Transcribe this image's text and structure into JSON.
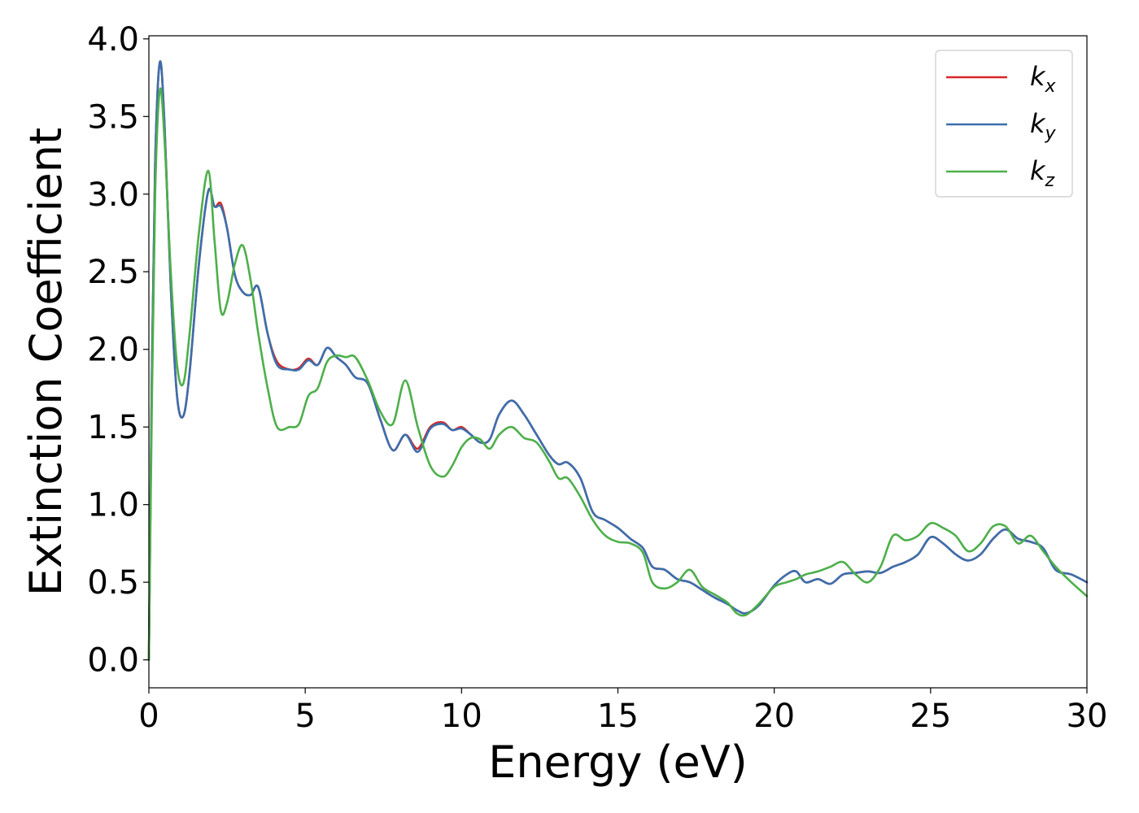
{
  "chart_data": {
    "type": "line",
    "xlabel": "Energy (eV)",
    "ylabel": "Extinction Coefficient",
    "xlim": [
      0,
      30
    ],
    "ylim": [
      -0.18,
      4.02
    ],
    "xticks": [
      0,
      5,
      10,
      15,
      20,
      25,
      30
    ],
    "xtick_labels": [
      "0",
      "5",
      "10",
      "15",
      "20",
      "25",
      "30"
    ],
    "yticks": [
      0.0,
      0.5,
      1.0,
      1.5,
      2.0,
      2.5,
      3.0,
      3.5,
      4.0
    ],
    "ytick_labels": [
      "0.0",
      "0.5",
      "1.0",
      "1.5",
      "2.0",
      "2.5",
      "3.0",
      "3.5",
      "4.0"
    ],
    "grid": false,
    "legend_position": "top-right",
    "series": [
      {
        "name": "x",
        "legend_main": "k",
        "legend_sub": "x",
        "color": "#d62728",
        "x": [
          0,
          0.1,
          0.2,
          0.35,
          0.5,
          0.7,
          0.9,
          1.1,
          1.3,
          1.6,
          1.9,
          2.1,
          2.3,
          2.5,
          2.75,
          3.0,
          3.25,
          3.5,
          3.8,
          4.1,
          4.5,
          4.8,
          5.1,
          5.4,
          5.7,
          6.0,
          6.3,
          6.6,
          7.0,
          7.4,
          7.8,
          8.2,
          8.6,
          9.0,
          9.4,
          9.7,
          10.0,
          10.3,
          10.6,
          10.9,
          11.2,
          11.6,
          12.0,
          12.4,
          12.8,
          13.1,
          13.4,
          13.8,
          14.2,
          14.6,
          15.0,
          15.4,
          15.8,
          16.1,
          16.5,
          16.9,
          17.3,
          17.7,
          18.1,
          18.5,
          18.8,
          19.1,
          19.5,
          20.0,
          20.4,
          20.7,
          21.0,
          21.4,
          21.8,
          22.2,
          22.6,
          23.0,
          23.4,
          23.8,
          24.2,
          24.6,
          25.0,
          25.4,
          25.8,
          26.2,
          26.6,
          27.0,
          27.4,
          27.8,
          28.2,
          28.6,
          29.0,
          29.5,
          30.0
        ],
        "values": [
          0.0,
          1.9,
          3.2,
          3.85,
          3.45,
          2.4,
          1.7,
          1.57,
          1.85,
          2.55,
          3.02,
          2.92,
          2.94,
          2.78,
          2.48,
          2.37,
          2.35,
          2.4,
          2.1,
          1.92,
          1.87,
          1.88,
          1.94,
          1.9,
          2.01,
          1.95,
          1.9,
          1.82,
          1.78,
          1.55,
          1.35,
          1.45,
          1.36,
          1.5,
          1.53,
          1.48,
          1.5,
          1.45,
          1.4,
          1.42,
          1.58,
          1.67,
          1.58,
          1.45,
          1.32,
          1.26,
          1.27,
          1.17,
          0.95,
          0.9,
          0.85,
          0.78,
          0.72,
          0.6,
          0.58,
          0.52,
          0.5,
          0.45,
          0.4,
          0.36,
          0.32,
          0.3,
          0.35,
          0.48,
          0.55,
          0.57,
          0.5,
          0.52,
          0.49,
          0.55,
          0.56,
          0.57,
          0.56,
          0.6,
          0.63,
          0.68,
          0.79,
          0.75,
          0.68,
          0.64,
          0.68,
          0.78,
          0.84,
          0.78,
          0.76,
          0.72,
          0.58,
          0.55,
          0.5
        ]
      },
      {
        "name": "y",
        "legend_main": "k",
        "legend_sub": "y",
        "color": "#3a6fad",
        "x": [
          0,
          0.1,
          0.2,
          0.35,
          0.5,
          0.7,
          0.9,
          1.1,
          1.3,
          1.6,
          1.9,
          2.1,
          2.3,
          2.5,
          2.75,
          3.0,
          3.25,
          3.5,
          3.8,
          4.1,
          4.5,
          4.8,
          5.1,
          5.4,
          5.7,
          6.0,
          6.3,
          6.6,
          7.0,
          7.4,
          7.8,
          8.2,
          8.6,
          9.0,
          9.4,
          9.7,
          10.0,
          10.3,
          10.6,
          10.9,
          11.2,
          11.6,
          12.0,
          12.4,
          12.8,
          13.1,
          13.4,
          13.8,
          14.2,
          14.6,
          15.0,
          15.4,
          15.8,
          16.1,
          16.5,
          16.9,
          17.3,
          17.7,
          18.1,
          18.5,
          18.8,
          19.1,
          19.5,
          20.0,
          20.4,
          20.7,
          21.0,
          21.4,
          21.8,
          22.2,
          22.6,
          23.0,
          23.4,
          23.8,
          24.2,
          24.6,
          25.0,
          25.4,
          25.8,
          26.2,
          26.6,
          27.0,
          27.4,
          27.8,
          28.2,
          28.6,
          29.0,
          29.5,
          30.0
        ],
        "values": [
          0.0,
          1.9,
          3.2,
          3.85,
          3.45,
          2.4,
          1.7,
          1.57,
          1.85,
          2.55,
          3.02,
          2.92,
          2.92,
          2.78,
          2.48,
          2.37,
          2.35,
          2.4,
          2.1,
          1.9,
          1.87,
          1.87,
          1.93,
          1.9,
          2.01,
          1.95,
          1.9,
          1.82,
          1.78,
          1.55,
          1.35,
          1.45,
          1.34,
          1.49,
          1.52,
          1.48,
          1.49,
          1.45,
          1.4,
          1.42,
          1.58,
          1.67,
          1.58,
          1.45,
          1.32,
          1.26,
          1.27,
          1.17,
          0.95,
          0.9,
          0.85,
          0.78,
          0.72,
          0.6,
          0.58,
          0.52,
          0.5,
          0.45,
          0.4,
          0.36,
          0.32,
          0.3,
          0.35,
          0.48,
          0.55,
          0.57,
          0.5,
          0.52,
          0.49,
          0.55,
          0.56,
          0.57,
          0.56,
          0.6,
          0.63,
          0.68,
          0.79,
          0.75,
          0.68,
          0.64,
          0.68,
          0.78,
          0.84,
          0.78,
          0.76,
          0.72,
          0.58,
          0.55,
          0.5
        ]
      },
      {
        "name": "z",
        "legend_main": "k",
        "legend_sub": "z",
        "color": "#4daf4a",
        "x": [
          0,
          0.1,
          0.2,
          0.35,
          0.5,
          0.7,
          0.9,
          1.1,
          1.3,
          1.6,
          1.9,
          2.1,
          2.3,
          2.5,
          2.75,
          3.0,
          3.25,
          3.5,
          3.8,
          4.1,
          4.5,
          4.8,
          5.1,
          5.4,
          5.7,
          6.0,
          6.3,
          6.6,
          7.0,
          7.4,
          7.8,
          8.2,
          8.6,
          9.0,
          9.4,
          9.7,
          10.0,
          10.3,
          10.6,
          10.9,
          11.2,
          11.6,
          12.0,
          12.4,
          12.8,
          13.1,
          13.4,
          13.8,
          14.2,
          14.6,
          15.0,
          15.4,
          15.8,
          16.1,
          16.5,
          16.9,
          17.3,
          17.7,
          18.1,
          18.5,
          18.8,
          19.1,
          19.5,
          20.0,
          20.4,
          20.7,
          21.0,
          21.4,
          21.8,
          22.2,
          22.6,
          23.0,
          23.4,
          23.8,
          24.2,
          24.6,
          25.0,
          25.4,
          25.8,
          26.2,
          26.6,
          27.0,
          27.4,
          27.8,
          28.2,
          28.6,
          29.0,
          29.5,
          30.0
        ],
        "values": [
          0.0,
          1.7,
          3.0,
          3.67,
          3.35,
          2.5,
          1.9,
          1.78,
          2.1,
          2.75,
          3.15,
          2.7,
          2.25,
          2.3,
          2.55,
          2.67,
          2.45,
          2.1,
          1.75,
          1.5,
          1.5,
          1.52,
          1.7,
          1.75,
          1.92,
          1.96,
          1.95,
          1.95,
          1.8,
          1.6,
          1.52,
          1.8,
          1.5,
          1.25,
          1.18,
          1.25,
          1.37,
          1.43,
          1.42,
          1.36,
          1.45,
          1.5,
          1.43,
          1.4,
          1.28,
          1.17,
          1.17,
          1.05,
          0.9,
          0.8,
          0.76,
          0.75,
          0.69,
          0.5,
          0.46,
          0.5,
          0.58,
          0.47,
          0.42,
          0.37,
          0.3,
          0.29,
          0.36,
          0.47,
          0.5,
          0.52,
          0.55,
          0.57,
          0.6,
          0.63,
          0.55,
          0.5,
          0.6,
          0.8,
          0.77,
          0.8,
          0.88,
          0.85,
          0.8,
          0.7,
          0.75,
          0.86,
          0.86,
          0.75,
          0.8,
          0.7,
          0.6,
          0.5,
          0.41
        ]
      }
    ]
  }
}
